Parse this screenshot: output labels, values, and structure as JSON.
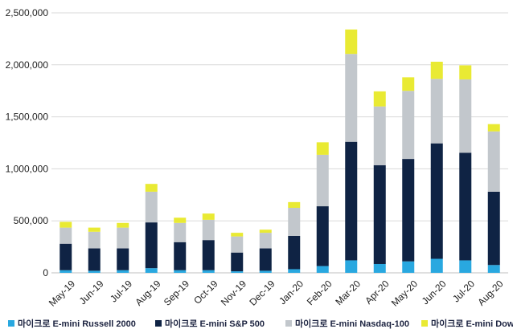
{
  "chart_data": {
    "type": "bar",
    "stacked": true,
    "title": "",
    "xlabel": "",
    "ylabel": "",
    "ylim": [
      0,
      2500000
    ],
    "yticks": [
      0,
      500000,
      1000000,
      1500000,
      2000000,
      2500000
    ],
    "ytick_labels": [
      "0",
      "500,000",
      "1,000,000",
      "1,500,000",
      "2,000,000",
      "2,500,000"
    ],
    "grid": true,
    "legend_position": "bottom",
    "categories": [
      "May-19",
      "Jun-19",
      "Jul-19",
      "Aug-19",
      "Sep-19",
      "Oct-19",
      "Nov-19",
      "Dec-19",
      "Jan-20",
      "Feb-20",
      "Mar-20",
      "Apr-20",
      "May-20",
      "Jun-20",
      "Jul-20",
      "Aug-20"
    ],
    "series": [
      {
        "name": "마이크로 E-mini Russell 2000",
        "color": "#29a8e0",
        "values": [
          25000,
          20000,
          25000,
          45000,
          25000,
          25000,
          15000,
          20000,
          35000,
          65000,
          120000,
          85000,
          110000,
          135000,
          120000,
          75000
        ]
      },
      {
        "name": "마이크로 E-mini S&P 500",
        "color": "#0f2344",
        "values": [
          255000,
          215000,
          210000,
          440000,
          270000,
          290000,
          180000,
          215000,
          320000,
          575000,
          1140000,
          950000,
          985000,
          1110000,
          1035000,
          705000
        ]
      },
      {
        "name": "마이크로 E-mini Nasdaq-100",
        "color": "#c2c7cc",
        "values": [
          155000,
          160000,
          200000,
          295000,
          185000,
          195000,
          155000,
          150000,
          270000,
          495000,
          845000,
          565000,
          655000,
          620000,
          705000,
          580000
        ]
      },
      {
        "name": "마이크로 E-mini Dow",
        "color": "#e9ea33",
        "values": [
          55000,
          40000,
          45000,
          75000,
          50000,
          60000,
          35000,
          30000,
          55000,
          120000,
          235000,
          145000,
          130000,
          165000,
          135000,
          70000
        ]
      }
    ]
  }
}
